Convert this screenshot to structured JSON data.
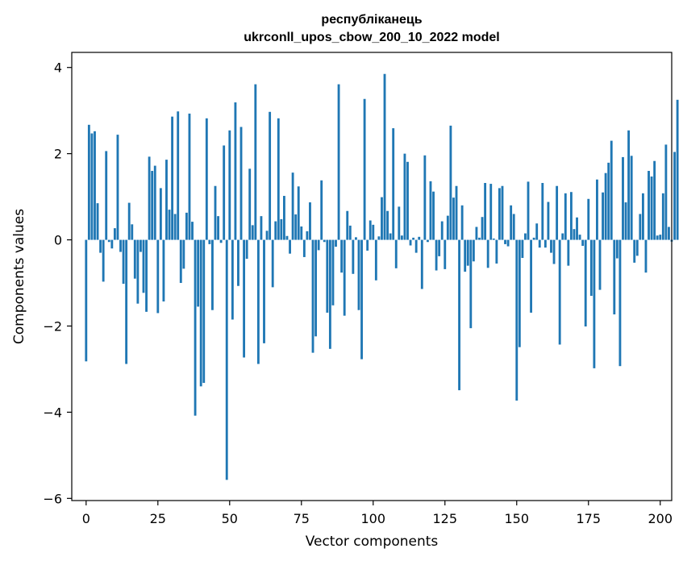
{
  "chart_data": {
    "type": "bar",
    "title": "республіканець",
    "subtitle": "ukrconll_upos_cbow_200_10_2022 model",
    "xlabel": "Vector components",
    "ylabel": "Components values",
    "xlim": [
      -5,
      204
    ],
    "ylim": [
      -6.05,
      4.35
    ],
    "xticks": [
      0,
      25,
      50,
      75,
      100,
      125,
      150,
      175,
      200
    ],
    "yticks": [
      -6,
      -4,
      -2,
      0,
      2,
      4
    ],
    "ytick_labels": [
      "−6",
      "−4",
      "−2",
      "0",
      "2",
      "4"
    ],
    "grid": false,
    "bar_color": "#1f77b4",
    "values": [
      -2.82,
      2.67,
      2.47,
      2.52,
      0.85,
      -0.3,
      -0.97,
      2.06,
      -0.05,
      -0.2,
      0.27,
      2.44,
      -0.28,
      -1.02,
      -2.88,
      0.86,
      0.36,
      -0.9,
      -1.48,
      -0.28,
      -1.23,
      -1.67,
      1.93,
      1.6,
      1.72,
      -1.7,
      1.2,
      -1.43,
      1.86,
      0.7,
      2.86,
      0.6,
      2.98,
      -1.0,
      -0.67,
      0.63,
      2.93,
      0.42,
      -4.08,
      -1.55,
      -3.4,
      -3.32,
      2.82,
      -0.1,
      -1.63,
      1.25,
      0.55,
      -0.07,
      2.19,
      -5.57,
      2.54,
      -1.85,
      3.19,
      -1.07,
      2.62,
      -2.73,
      -0.44,
      1.65,
      0.34,
      3.61,
      -2.88,
      0.55,
      -2.4,
      0.21,
      2.97,
      -1.1,
      0.43,
      2.82,
      0.48,
      1.02,
      0.09,
      -0.32,
      1.56,
      0.59,
      1.24,
      0.31,
      -0.4,
      0.2,
      0.87,
      -2.62,
      -2.24,
      -0.24,
      1.38,
      -0.05,
      -1.69,
      -2.53,
      -1.52,
      -0.16,
      3.61,
      -0.76,
      -1.76,
      0.67,
      0.33,
      -0.79,
      0.06,
      -1.63,
      -2.77,
      3.27,
      -0.25,
      0.45,
      0.35,
      -0.94,
      0.08,
      0.99,
      3.85,
      0.67,
      0.15,
      2.59,
      -0.66,
      0.77,
      0.1,
      2.0,
      1.81,
      -0.13,
      0.05,
      -0.3,
      0.07,
      -1.14,
      1.96,
      -0.05,
      1.36,
      1.12,
      -0.71,
      -0.38,
      0.43,
      -0.68,
      0.56,
      2.65,
      0.98,
      1.25,
      -3.49,
      0.8,
      -0.74,
      -0.6,
      -2.05,
      -0.5,
      0.3,
      0.05,
      0.53,
      1.32,
      -0.65,
      1.3,
      0.03,
      -0.55,
      1.2,
      1.25,
      -0.1,
      -0.15,
      0.8,
      0.6,
      -3.73,
      -2.49,
      -0.42,
      0.15,
      1.35,
      -1.69,
      0.05,
      0.38,
      -0.18,
      1.32,
      -0.18,
      0.88,
      -0.3,
      -0.56,
      1.25,
      -2.43,
      0.15,
      1.08,
      -0.6,
      1.11,
      0.25,
      0.52,
      0.12,
      -0.14,
      -2.01,
      0.95,
      -1.3,
      -2.98,
      1.4,
      -1.16,
      1.1,
      1.55,
      1.79,
      2.3,
      -1.73,
      -0.43,
      -2.93,
      1.92,
      0.87,
      2.54,
      1.95,
      -0.53,
      -0.37,
      0.6,
      1.08,
      -0.76,
      1.6,
      1.47,
      1.83,
      0.1,
      0.12,
      1.08,
      2.21,
      0.3,
      -0.04,
      2.04,
      3.25
    ]
  }
}
